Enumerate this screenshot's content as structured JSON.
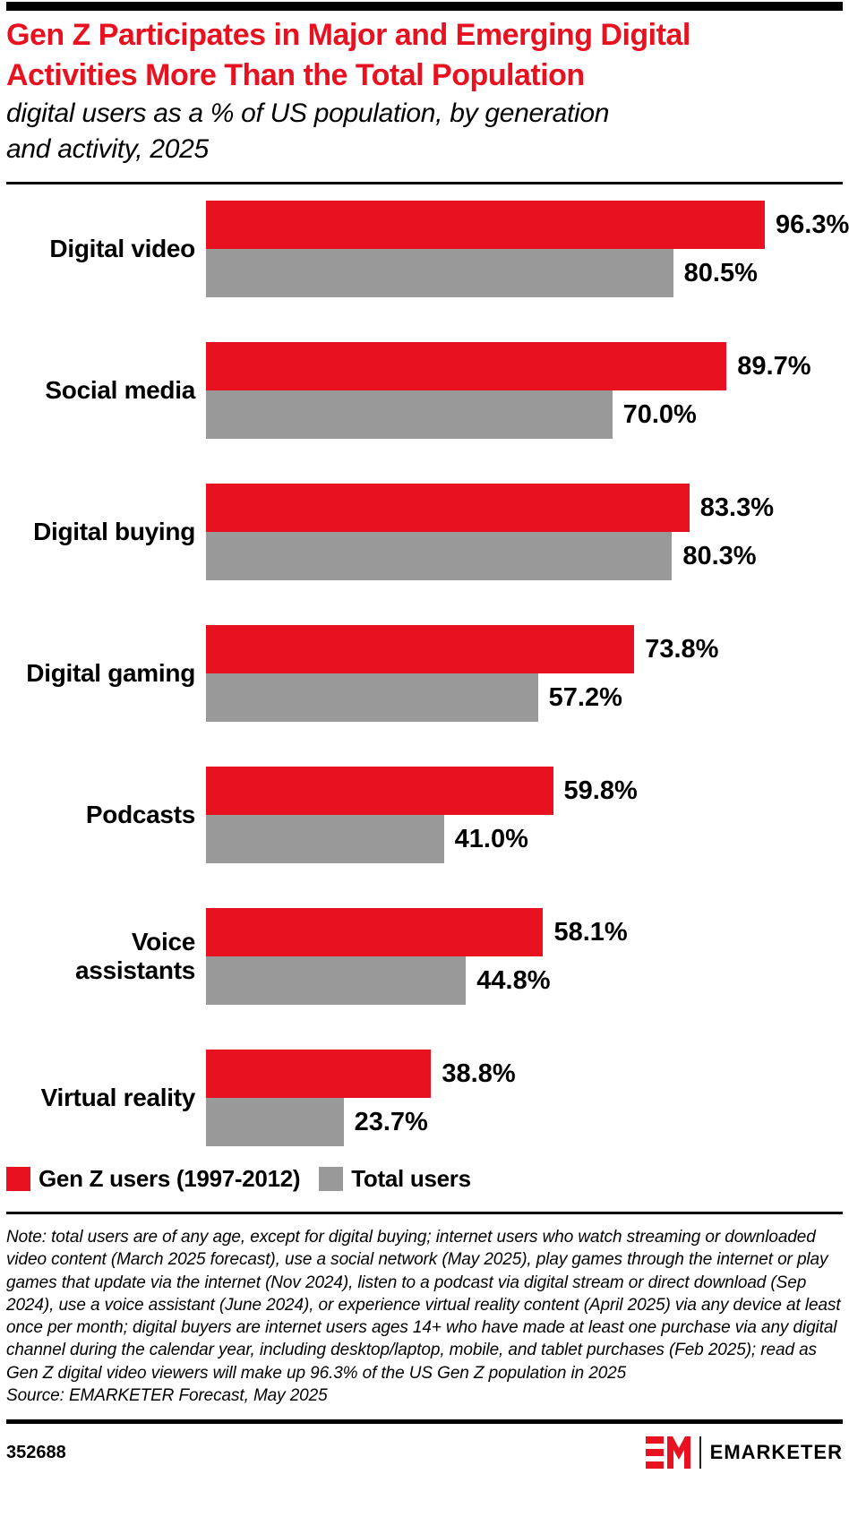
{
  "header": {
    "title_line1": "Gen Z Participates in Major and Emerging Digital",
    "title_line2": "Activities More Than the Total Population",
    "subtitle_line1": "digital users as a % of US population, by generation",
    "subtitle_line2": "and activity, 2025"
  },
  "chart_data": {
    "type": "bar",
    "orientation": "horizontal",
    "title": "Gen Z Participates in Major and Emerging Digital Activities More Than the Total Population",
    "subtitle": "digital users as a % of US population, by generation and activity, 2025",
    "categories": [
      "Digital video",
      "Social media",
      "Digital buying",
      "Digital gaming",
      "Podcasts",
      "Voice assistants",
      "Virtual reality"
    ],
    "series": [
      {
        "name": "Gen Z users (1997-2012)",
        "color": "#e8111f",
        "values": [
          96.3,
          89.7,
          83.3,
          73.8,
          59.8,
          58.1,
          38.8
        ]
      },
      {
        "name": "Total users",
        "color": "#999999",
        "values": [
          80.5,
          70.0,
          80.3,
          57.2,
          41.0,
          44.8,
          23.7
        ]
      }
    ],
    "value_suffix": "%",
    "value_decimals": 1,
    "xlim": [
      0,
      100
    ],
    "grid": false,
    "data_labels": true,
    "legend_position": "bottom-left"
  },
  "note": "Note: total users are of any age, except for digital buying; internet users who watch streaming or downloaded video content (March 2025 forecast), use a social network (May 2025), play games through the internet or play games that update via the internet (Nov 2024), listen to a podcast via digital stream or direct download (Sep 2024), use a voice assistant (June 2024), or experience virtual reality content (April 2025) via any device at least once per month; digital buyers are internet users ages 14+ who have made at least one purchase via any digital channel during the calendar year, including desktop/laptop, mobile, and tablet purchases (Feb 2025); read as Gen Z digital video viewers will make up 96.3% of the US Gen Z population in 2025",
  "source": "Source: EMARKETER Forecast, May 2025",
  "footer": {
    "chart_id": "352688",
    "brand_name": "EMARKETER"
  },
  "colors": {
    "accent_red": "#e8111f",
    "bar_gray": "#999999",
    "text_black": "#000000"
  }
}
